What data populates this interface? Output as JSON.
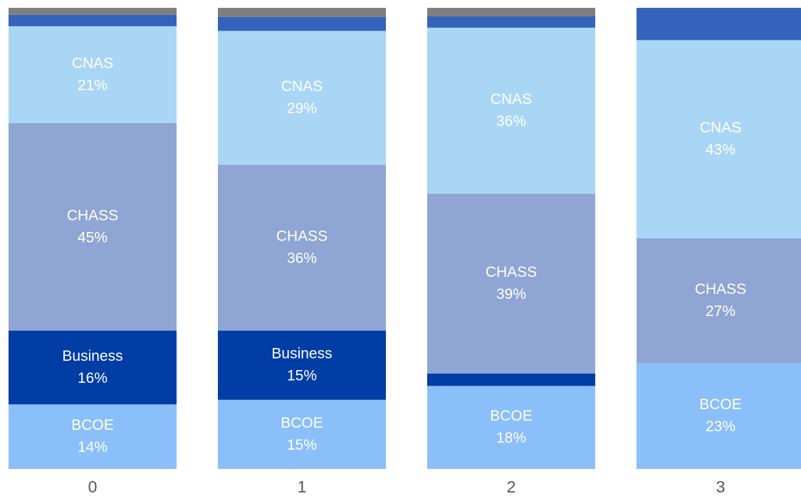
{
  "chart_data": {
    "type": "stacked_bar",
    "categories": [
      "0",
      "1",
      "2",
      "3"
    ],
    "ylim": [
      0,
      100
    ],
    "series": [
      {
        "name": "BCOE",
        "color": "#8bbff9",
        "values": [
          14,
          15,
          18,
          23
        ],
        "value_labels": [
          "14%",
          "15%",
          "18%",
          "23%"
        ]
      },
      {
        "name": "Business",
        "color": "#003da5",
        "values": [
          16,
          15,
          2.7,
          null
        ],
        "value_labels": [
          "16%",
          "15%",
          null,
          null
        ]
      },
      {
        "name": "CHASS",
        "color": "#8fa5d3",
        "values": [
          45,
          36,
          39,
          27
        ],
        "value_labels": [
          "45%",
          "36%",
          "39%",
          "27%"
        ]
      },
      {
        "name": "CNAS",
        "color": "#aad6f5",
        "values": [
          21,
          29,
          36,
          43
        ],
        "value_labels": [
          "21%",
          "29%",
          "36%",
          "43%"
        ]
      },
      {
        "color": "#3563bb",
        "values": [
          2.5,
          3,
          2.5,
          7
        ]
      },
      {
        "color": "#7f7f7f",
        "values": [
          1.5,
          2,
          1.8,
          null
        ]
      }
    ]
  }
}
